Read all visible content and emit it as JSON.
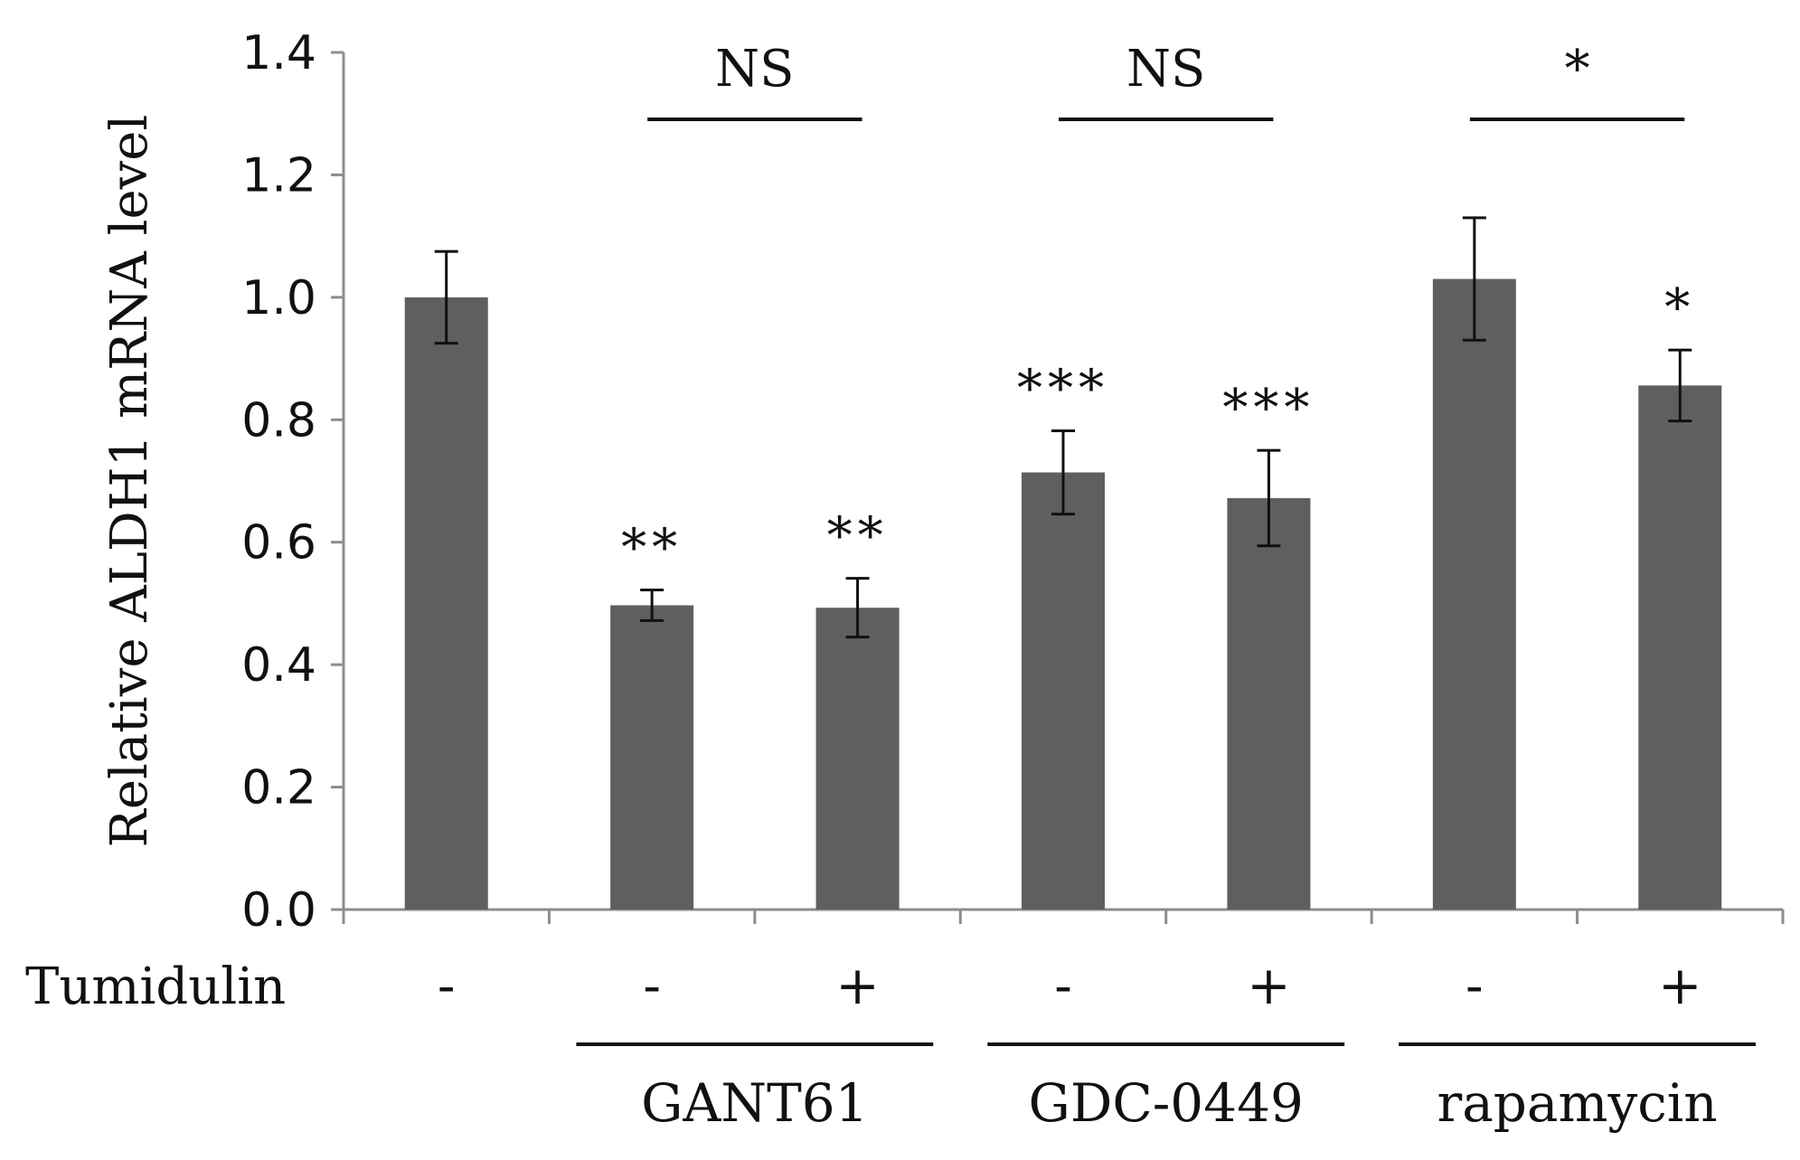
{
  "chart_data": {
    "type": "bar",
    "title": "",
    "xlabel": "",
    "ylabel": "Relative ALDH1 mRNA level",
    "ylim": [
      0,
      1.4
    ],
    "y_ticks": [
      "0.0",
      "0.2",
      "0.4",
      "0.6",
      "0.8",
      "1.0",
      "1.2",
      "1.4"
    ],
    "bar_color": "#5f5f5f",
    "row_label": "Tumidulin",
    "categories": [
      "-",
      "-",
      "+",
      "-",
      "+",
      "-",
      "+"
    ],
    "values": [
      1.0,
      0.497,
      0.493,
      0.714,
      0.672,
      1.03,
      0.856
    ],
    "errors": [
      0.075,
      0.025,
      0.048,
      0.068,
      0.078,
      0.1,
      0.058
    ],
    "significance": [
      "",
      "**",
      "**",
      "***",
      "***",
      "",
      "*"
    ],
    "groups": [
      {
        "label": "GANT61",
        "bars": [
          1,
          2
        ],
        "comparison": "NS"
      },
      {
        "label": "GDC-0449",
        "bars": [
          3,
          4
        ],
        "comparison": "NS"
      },
      {
        "label": "rapamycin",
        "bars": [
          5,
          6
        ],
        "comparison": "*"
      }
    ]
  }
}
